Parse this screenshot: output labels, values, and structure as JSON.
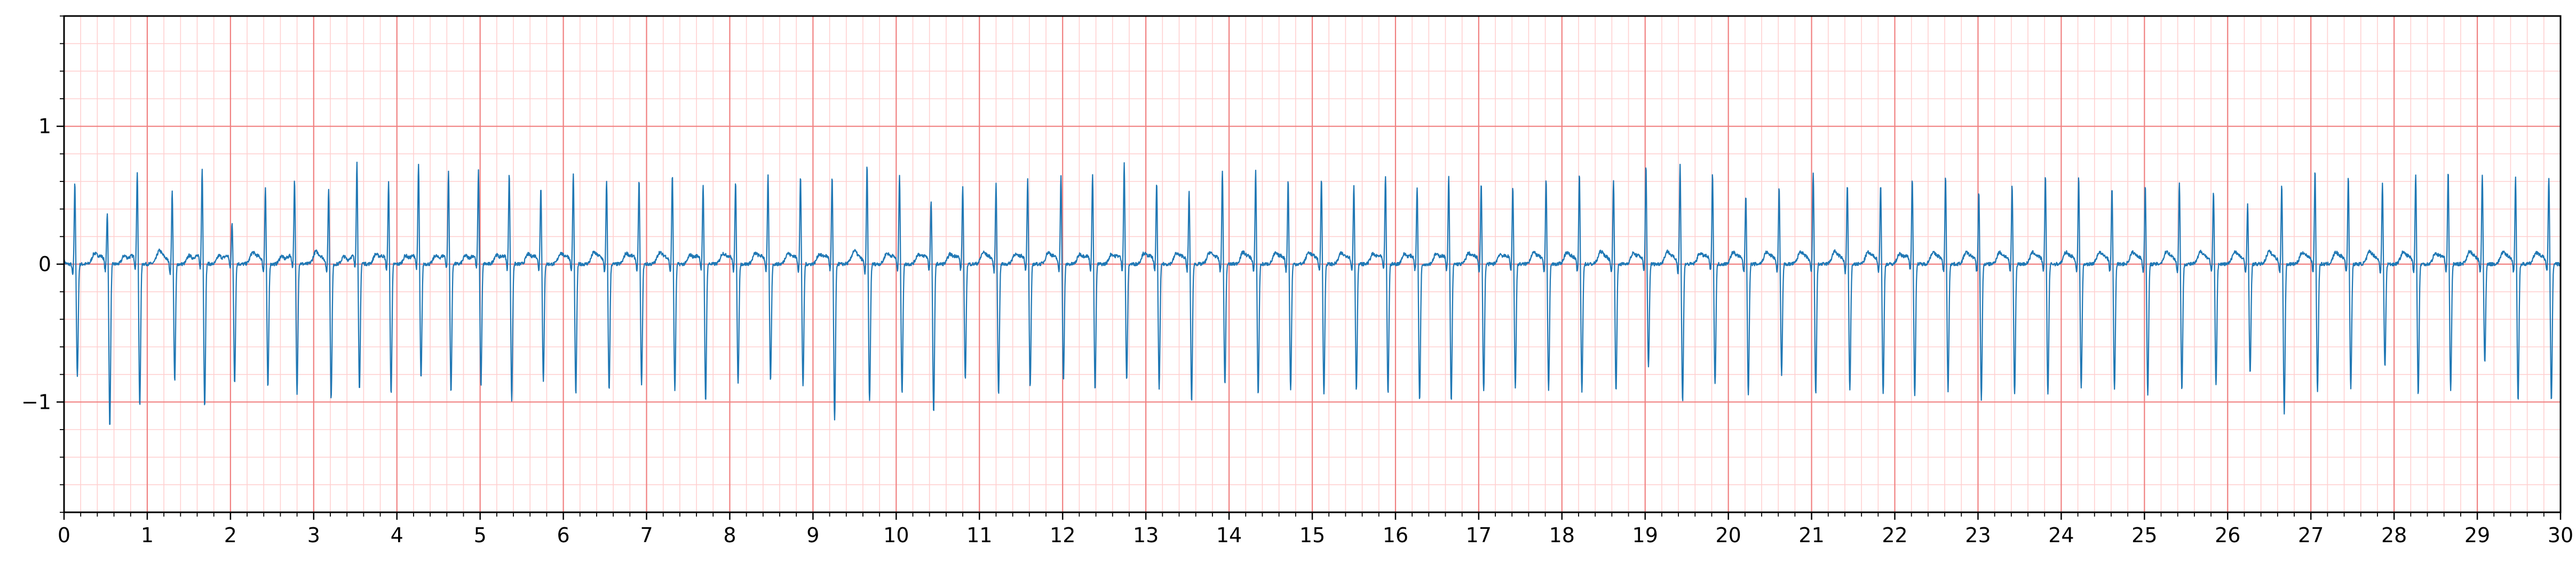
{
  "chart_data": {
    "type": "line",
    "title": "",
    "xlabel": "",
    "ylabel": "",
    "xlim": [
      0,
      30
    ],
    "ylim": [
      -1.8,
      1.8
    ],
    "x_ticks": [
      0,
      1,
      2,
      3,
      4,
      5,
      6,
      7,
      8,
      9,
      10,
      11,
      12,
      13,
      14,
      15,
      16,
      17,
      18,
      19,
      20,
      21,
      22,
      23,
      24,
      25,
      26,
      27,
      28,
      29,
      30
    ],
    "x_tick_labels": [
      "0",
      "1",
      "2",
      "3",
      "4",
      "5",
      "6",
      "7",
      "8",
      "9",
      "10",
      "11",
      "12",
      "13",
      "14",
      "15",
      "16",
      "17",
      "18",
      "19",
      "20",
      "21",
      "22",
      "23",
      "24",
      "25",
      "26",
      "27",
      "28",
      "29",
      "30"
    ],
    "y_ticks": [
      1,
      0,
      -1
    ],
    "y_tick_labels": [
      "1",
      "0",
      "−1"
    ],
    "x_major_grid_step": 1,
    "x_minor_grid_step": 0.2,
    "y_major_grid_step": 1,
    "y_minor_grid_step": 0.2,
    "grid": true,
    "legend": "none",
    "colors": {
      "trace": "#1f77b4",
      "major_grid": "#f08080",
      "minor_grid": "#ffd0d0",
      "axis": "#000000",
      "background": "#ffffff"
    },
    "series": [
      {
        "beat_times": [
          0.13,
          0.52,
          0.88,
          1.3,
          1.66,
          2.02,
          2.42,
          2.77,
          3.18,
          3.52,
          3.9,
          4.26,
          4.62,
          4.98,
          5.35,
          5.73,
          6.12,
          6.52,
          6.91,
          7.31,
          7.68,
          8.07,
          8.46,
          8.85,
          9.23,
          9.65,
          10.04,
          10.42,
          10.8,
          11.2,
          11.58,
          11.98,
          12.36,
          12.74,
          13.13,
          13.52,
          13.92,
          14.32,
          14.71,
          15.11,
          15.5,
          15.88,
          16.26,
          16.64,
          17.03,
          17.41,
          17.81,
          18.21,
          18.62,
          19.01,
          19.42,
          19.81,
          20.21,
          20.61,
          21.02,
          21.43,
          21.83,
          22.21,
          22.61,
          23.01,
          23.41,
          23.81,
          24.21,
          24.61,
          25.01,
          25.42,
          25.83,
          26.24,
          26.65,
          27.05,
          27.45,
          27.86,
          28.26,
          28.65,
          29.06,
          29.46,
          29.86
        ],
        "r_amplitudes": [
          0.6,
          0.37,
          0.65,
          0.53,
          0.67,
          0.28,
          0.55,
          0.58,
          0.55,
          0.7,
          0.58,
          0.7,
          0.65,
          0.65,
          0.65,
          0.55,
          0.65,
          0.6,
          0.6,
          0.65,
          0.55,
          0.6,
          0.63,
          0.63,
          0.62,
          0.72,
          0.65,
          0.45,
          0.55,
          0.58,
          0.6,
          0.65,
          0.65,
          0.72,
          0.58,
          0.52,
          0.67,
          0.67,
          0.6,
          0.62,
          0.57,
          0.63,
          0.55,
          0.62,
          0.58,
          0.55,
          0.62,
          0.65,
          0.62,
          0.7,
          0.72,
          0.65,
          0.5,
          0.55,
          0.67,
          0.58,
          0.58,
          0.62,
          0.63,
          0.53,
          0.57,
          0.65,
          0.63,
          0.55,
          0.58,
          0.6,
          0.53,
          0.43,
          0.58,
          0.68,
          0.63,
          0.58,
          0.65,
          0.67,
          0.65,
          0.62,
          0.63
        ],
        "s_amplitudes": [
          -0.82,
          -1.18,
          -1.05,
          -0.85,
          -1.05,
          -0.88,
          -0.9,
          -0.96,
          -0.98,
          -0.95,
          -0.95,
          -0.85,
          -0.95,
          -0.9,
          -1.0,
          -0.85,
          -0.95,
          -0.92,
          -0.88,
          -0.92,
          -1.0,
          -0.88,
          -0.85,
          -0.9,
          -1.15,
          -1.0,
          -0.95,
          -1.1,
          -0.85,
          -0.95,
          -0.9,
          -0.85,
          -0.92,
          -0.85,
          -0.9,
          -1.0,
          -0.88,
          -0.95,
          -0.92,
          -0.95,
          -0.92,
          -0.95,
          -1.0,
          -1.0,
          -0.93,
          -0.9,
          -0.92,
          -0.93,
          -0.92,
          -0.75,
          -1.0,
          -0.88,
          -0.95,
          -0.8,
          -0.95,
          -0.92,
          -0.95,
          -0.97,
          -0.92,
          -0.98,
          -0.95,
          -0.95,
          -0.9,
          -0.92,
          -0.95,
          -0.92,
          -0.88,
          -0.8,
          -1.08,
          -0.92,
          -0.9,
          -0.75,
          -0.95,
          -0.93,
          -0.72,
          -1.0,
          -1.0
        ]
      }
    ]
  }
}
